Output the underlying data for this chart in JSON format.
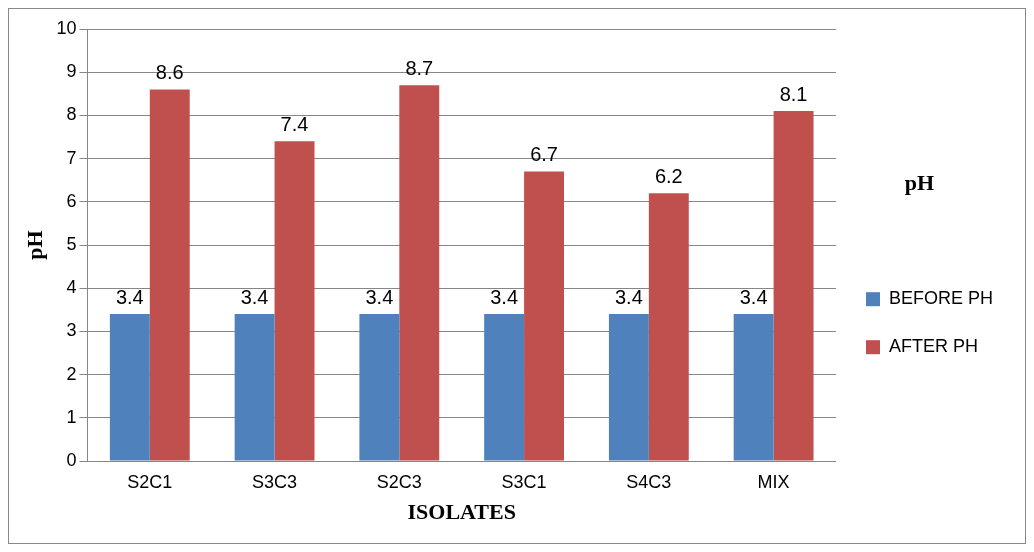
{
  "chart_data": {
    "type": "bar",
    "xlabel": "ISOLATES",
    "ylabel": "pH",
    "legend_title": "pH",
    "categories": [
      "S2C1",
      "S3C3",
      "S2C3",
      "S3C1",
      "S4C3",
      "MIX"
    ],
    "series": [
      {
        "name": "BEFORE PH",
        "color": "#4f81bd",
        "values": [
          3.4,
          3.4,
          3.4,
          3.4,
          3.4,
          3.4
        ]
      },
      {
        "name": "AFTER PH",
        "color": "#c0504d",
        "values": [
          8.6,
          7.4,
          8.7,
          6.7,
          6.2,
          8.1
        ]
      }
    ],
    "ylim": [
      0,
      10
    ],
    "yticks": [
      0,
      1,
      2,
      3,
      4,
      5,
      6,
      7,
      8,
      9,
      10
    ],
    "grid": "y",
    "legend": "right",
    "data_labels": true
  }
}
